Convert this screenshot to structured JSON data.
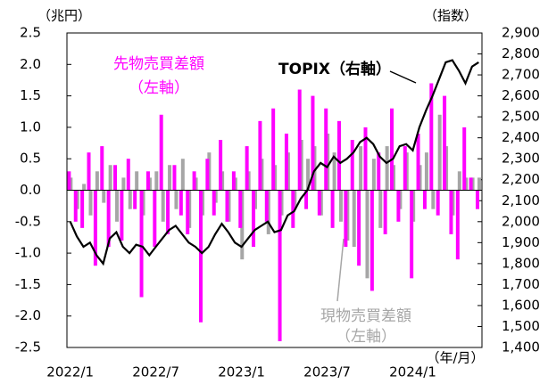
{
  "chart_data": {
    "type": "bar",
    "y_unit_label": "（兆円）",
    "y2_unit_label": "（指数）",
    "x_unit_label": "（年/月）",
    "annotations": [
      "先物売買差額",
      "（左軸）",
      "TOPIX（右軸）",
      "現物売買差額",
      "（左軸）"
    ],
    "categories": [
      "2022/1",
      null,
      null,
      null,
      null,
      null,
      null,
      null,
      null,
      null,
      null,
      null,
      null,
      "2022/7",
      null,
      null,
      null,
      null,
      null,
      null,
      null,
      null,
      null,
      null,
      null,
      null,
      "2023/1",
      null,
      null,
      null,
      null,
      null,
      null,
      null,
      null,
      null,
      null,
      null,
      null,
      "2023/7",
      null,
      null,
      null,
      null,
      null,
      null,
      null,
      null,
      null,
      null,
      null,
      null,
      "2024/1",
      null,
      null,
      null,
      null,
      null,
      null,
      null,
      null,
      null,
      null
    ],
    "series": [
      {
        "name": "現物売買差額",
        "color": "#a6a6a6",
        "values": [
          0.2,
          -0.3,
          0.1,
          -0.4,
          0.3,
          -0.2,
          0.4,
          -0.5,
          0.2,
          -0.3,
          0.3,
          -0.4,
          0.2,
          0.3,
          -0.5,
          0.4,
          -0.3,
          0.5,
          -0.6,
          0.2,
          -0.4,
          0.6,
          -0.2,
          0.3,
          -0.5,
          0.2,
          -1.1,
          0.3,
          -0.3,
          0.5,
          -0.7,
          0.4,
          -0.4,
          0.6,
          -0.3,
          0.8,
          0.5,
          0.7,
          -0.4,
          0.9,
          0.6,
          -0.5,
          -0.8,
          -0.9,
          0.7,
          -1.4,
          0.5,
          -0.6,
          0.7,
          0.4,
          -0.3,
          0.6,
          -0.5,
          0.4,
          0.6,
          -0.3,
          1.2,
          0.7,
          -0.4,
          0.3,
          0.2,
          0.2,
          0.2
        ]
      },
      {
        "name": "先物売買差額",
        "color": "#ff00ff",
        "values": [
          0.3,
          -0.5,
          -0.6,
          0.6,
          -1.2,
          0.7,
          -0.9,
          0.4,
          -0.8,
          0.5,
          -0.3,
          -1.7,
          0.3,
          -0.9,
          1.2,
          -0.7,
          0.4,
          -0.4,
          -0.7,
          0.3,
          -2.1,
          0.5,
          -0.4,
          0.8,
          -0.5,
          0.3,
          -0.6,
          0.7,
          -0.9,
          1.1,
          -0.5,
          1.3,
          -2.4,
          0.9,
          -0.6,
          1.6,
          -0.3,
          1.5,
          -0.4,
          1.3,
          -0.6,
          1.1,
          -0.9,
          0.8,
          -1.2,
          1.0,
          -1.6,
          0.6,
          -0.7,
          1.3,
          -0.5,
          0.7,
          -1.4,
          0.9,
          -0.3,
          1.7,
          -0.4,
          1.5,
          -0.7,
          -1.1,
          1.0,
          0.2,
          -0.3
        ]
      },
      {
        "name": "TOPIX",
        "type": "line",
        "axis": "y2",
        "color": "#000000",
        "values": [
          2000,
          1930,
          1880,
          1900,
          1840,
          1800,
          1920,
          1950,
          1880,
          1850,
          1890,
          1880,
          1840,
          1880,
          1920,
          1960,
          1980,
          1940,
          1900,
          1880,
          1850,
          1880,
          1940,
          1990,
          1950,
          1900,
          1880,
          1920,
          1960,
          1980,
          2000,
          1950,
          1960,
          2030,
          2050,
          2110,
          2150,
          2240,
          2280,
          2260,
          2310,
          2280,
          2300,
          2330,
          2380,
          2400,
          2370,
          2310,
          2280,
          2300,
          2360,
          2370,
          2340,
          2450,
          2530,
          2600,
          2680,
          2760,
          2770,
          2720,
          2660,
          2740,
          2760
        ]
      }
    ],
    "ylim": [
      -2.5,
      2.5
    ],
    "yticks": [
      2.5,
      {
        "value": 2,
        "label": "2.0"
      },
      1.5,
      {
        "value": 1,
        "label": "1.0"
      },
      0.5,
      {
        "value": 0,
        "label": "0.0"
      },
      -0.5,
      {
        "value": -1,
        "label": "-1.0"
      },
      -1.5,
      {
        "value": -2,
        "label": "-2.0"
      },
      -2.5
    ],
    "y2lim": [
      1400,
      2900
    ],
    "y2ticks": [
      {
        "value": 2900,
        "label": "2,900"
      },
      {
        "value": 2800,
        "label": "2,800"
      },
      {
        "value": 2700,
        "label": "2,700"
      },
      {
        "value": 2600,
        "label": "2,600"
      },
      {
        "value": 2500,
        "label": "2,500"
      },
      {
        "value": 2400,
        "label": "2,400"
      },
      {
        "value": 2300,
        "label": "2,300"
      },
      {
        "value": 2200,
        "label": "2,200"
      },
      {
        "value": 2100,
        "label": "2,100"
      },
      {
        "value": 2000,
        "label": "2,000"
      },
      {
        "value": 1900,
        "label": "1,900"
      },
      {
        "value": 1800,
        "label": "1,800"
      },
      {
        "value": 1700,
        "label": "1,700"
      },
      {
        "value": 1600,
        "label": "1,600"
      },
      {
        "value": 1500,
        "label": "1,500"
      },
      {
        "value": 1400,
        "label": "1,400"
      }
    ],
    "grid": false
  }
}
